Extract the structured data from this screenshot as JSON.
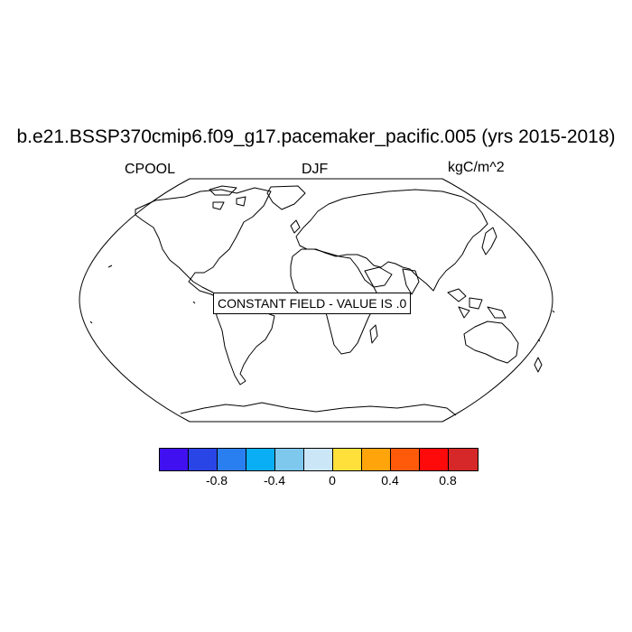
{
  "title": "b.e21.BSSP370cmip6.f09_g17.pacemaker_pacific.005 (yrs 2015-2018)",
  "left_label": "CPOOL",
  "center_label": "DJF",
  "right_label": "kgC/m^2",
  "constant_field_note": "CONSTANT FIELD - VALUE IS .0",
  "colorbar": {
    "colors": [
      "#4010f0",
      "#2a45e6",
      "#2a7ff0",
      "#0aaef5",
      "#7ec8ee",
      "#cbe7f7",
      "#ffe03a",
      "#ffa40a",
      "#ff5a0a",
      "#ff0a0a",
      "#d62828"
    ],
    "tick_labels": [
      "-0.8",
      "-0.4",
      "0",
      "0.4",
      "0.8"
    ]
  }
}
